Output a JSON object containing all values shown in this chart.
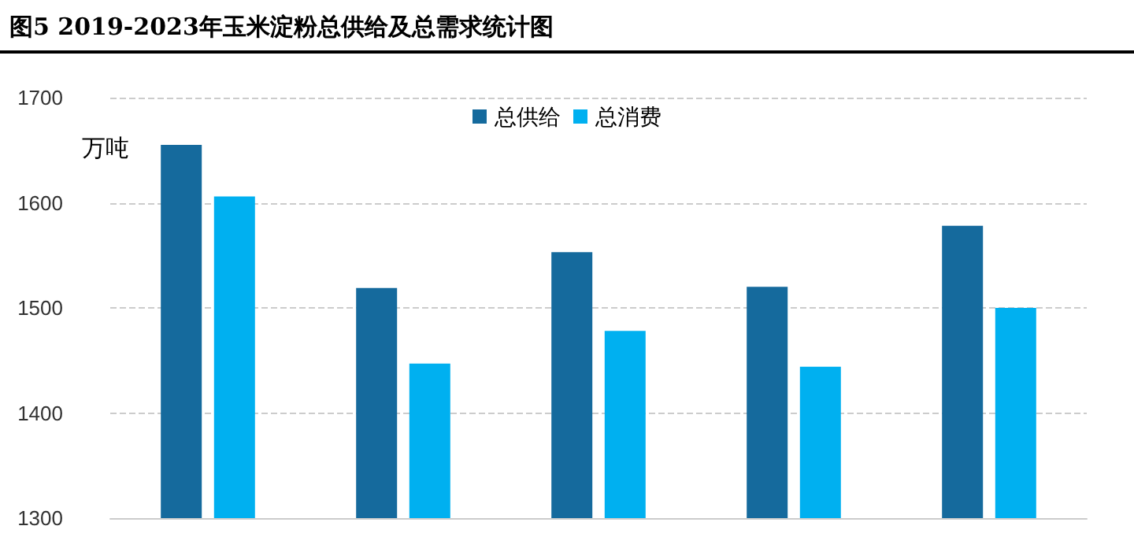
{
  "chart_data": {
    "type": "bar",
    "title": "图5 2019-2023年玉米淀粉总供给及总需求统计图",
    "ylabel": "万吨",
    "categories": [
      null,
      null,
      null,
      null,
      null
    ],
    "series": [
      {
        "name": "总供给",
        "color": "#156a9d",
        "values": [
          1655,
          1519,
          1553,
          1520,
          1578
        ]
      },
      {
        "name": "总消费",
        "color": "#00b0f0",
        "values": [
          1606,
          1447,
          1478,
          1444,
          1500
        ]
      }
    ],
    "ylim": [
      1300,
      1700
    ],
    "yticks": [
      1300,
      1400,
      1500,
      1600,
      1700
    ],
    "grid": "y",
    "legend": "top"
  }
}
